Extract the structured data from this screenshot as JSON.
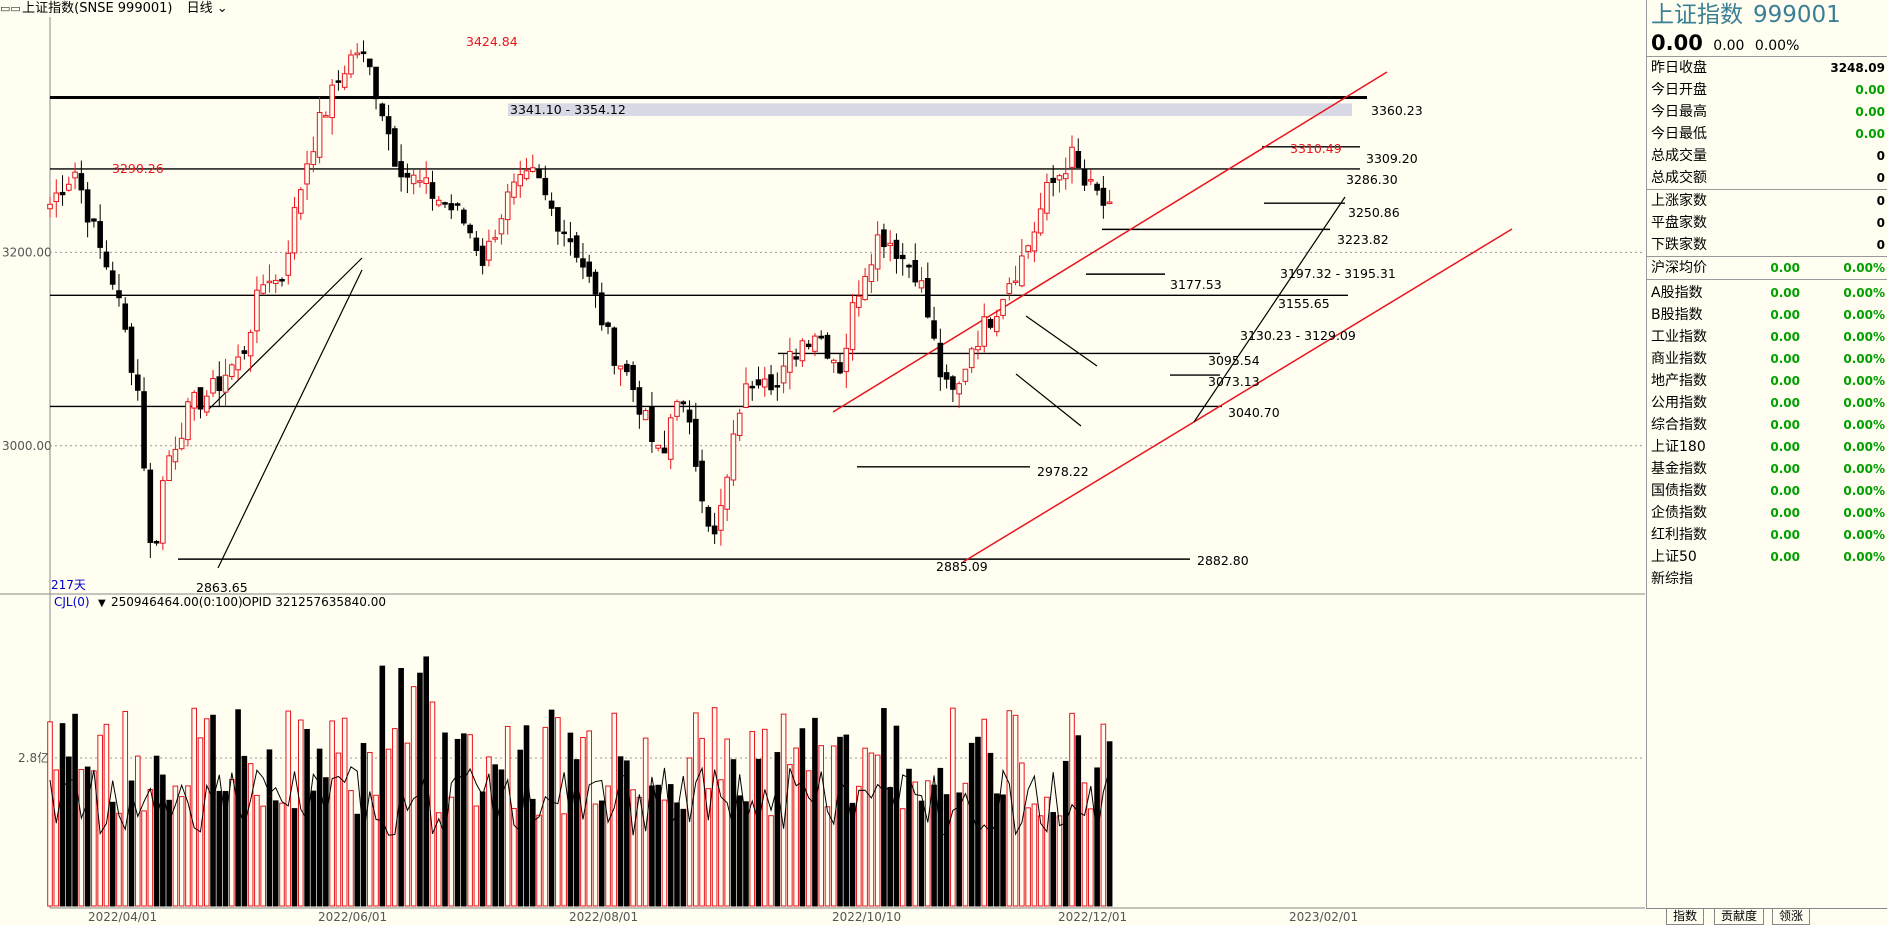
{
  "topbar": {
    "icon": "chart-mode-icon",
    "title": "上证指数(SNSE 999001)",
    "period": "日线",
    "period_icon": "chevron-down-icon"
  },
  "chart_data": {
    "type": "candlestick",
    "title": "",
    "ylim": [
      2855,
      3430
    ],
    "y_ticks": [
      {
        "label": "3200.00",
        "value": 3200
      },
      {
        "label": "3000.00",
        "value": 3000
      }
    ],
    "x_ticks": [
      "2022/04/01",
      "2022/06/01",
      "2022/08/01",
      "2022/10/10",
      "2022/12/01",
      "2023/02/01"
    ],
    "days_label": "217天",
    "price_annotations": [
      {
        "text": "3424.84",
        "day": 62,
        "value": 3424.84,
        "color": "red"
      },
      {
        "text": "3290.26",
        "day": 13,
        "value": 3290.26,
        "color": "red"
      },
      {
        "text": "3310.49",
        "day": 206,
        "value": 3310.49,
        "color": "red"
      },
      {
        "text": "2863.65",
        "day": 25,
        "value": 2863.65,
        "color": "black"
      },
      {
        "text": "2885.09",
        "day": 137,
        "value": 2885.09,
        "color": "black"
      },
      {
        "text": "3341.10 - 3354.12",
        "day": 69,
        "value": 3354.12,
        "color": "black"
      },
      {
        "text": "3360.23",
        "value": 3360.23
      },
      {
        "text": "3309.20",
        "value": 3309.2
      },
      {
        "text": "3286.30",
        "value": 3286.3
      },
      {
        "text": "3250.86",
        "value": 3250.86
      },
      {
        "text": "3223.82",
        "value": 3223.82
      },
      {
        "text": "3197.32 - 3195.31",
        "value": 3195.31
      },
      {
        "text": "3177.53",
        "value": 3177.53
      },
      {
        "text": "3155.65",
        "value": 3155.65
      },
      {
        "text": "3130.23 - 3129.09",
        "value": 3129.09
      },
      {
        "text": "3095.54",
        "value": 3095.54
      },
      {
        "text": "3073.13",
        "value": 3073.13
      },
      {
        "text": "3040.70",
        "value": 3040.7
      },
      {
        "text": "2978.22",
        "value": 2978.22
      },
      {
        "text": "2882.80",
        "value": 2882.8
      }
    ],
    "levels": [
      3360.23,
      3286.3,
      3155.65,
      3095.54,
      3040.7,
      2978.22,
      2882.8,
      3309.2,
      3250.86,
      3223.82,
      3177.53,
      3073.13
    ],
    "close_path": [
      3250,
      3270,
      3285,
      3240,
      3200,
      3170,
      3110,
      3050,
      2870,
      2980,
      3010,
      3040,
      3050,
      3060,
      3080,
      3090,
      3140,
      3180,
      3165,
      3230,
      3290,
      3330,
      3360,
      3390,
      3410,
      3390,
      3350,
      3300,
      3280,
      3270,
      3260,
      3250,
      3240,
      3220,
      3190,
      3230,
      3260,
      3270,
      3280,
      3250,
      3230,
      3210,
      3180,
      3140,
      3100,
      3080,
      3050,
      3010,
      2980,
      3060,
      3020,
      2960,
      2900,
      2960,
      3040,
      3070,
      3080,
      3060,
      3090,
      3110,
      3120,
      3100,
      3080,
      3150,
      3190,
      3220,
      3210,
      3190,
      3180,
      3120,
      3060,
      3050,
      3100,
      3120,
      3140,
      3170,
      3190,
      3220,
      3260,
      3280,
      3300,
      3270,
      3260,
      3240
    ]
  },
  "indicator": {
    "name": "CJL(0)",
    "icon": "dropdown-triangle-icon",
    "value": "250946464.00(0:100)",
    "opid": "OPID 321257635840.00",
    "ref_label": "2.8亿"
  },
  "quote": {
    "name": "上证指数",
    "code": "999001",
    "price": "0.00",
    "change": "0.00",
    "pct": "0.00%",
    "fields": [
      {
        "label": "昨日收盘",
        "value": "3248.09",
        "color": "#000000"
      },
      {
        "label": "今日开盘",
        "value": "0.00",
        "color": "#00a000"
      },
      {
        "label": "今日最高",
        "value": "0.00",
        "color": "#00a000"
      },
      {
        "label": "今日最低",
        "value": "0.00",
        "color": "#00a000"
      },
      {
        "label": "总成交量",
        "value": "0",
        "color": "#000000"
      },
      {
        "label": "总成交额",
        "value": "0",
        "color": "#000000"
      }
    ],
    "breadth": [
      {
        "label": "上涨家数",
        "value": "0"
      },
      {
        "label": "平盘家数",
        "value": "0"
      },
      {
        "label": "下跌家数",
        "value": "0"
      }
    ],
    "avg": {
      "label": "沪深均价",
      "v1": "0.00",
      "v2": "0.00%"
    },
    "indices": [
      {
        "label": "A股指数",
        "v1": "0.00",
        "v2": "0.00%"
      },
      {
        "label": "B股指数",
        "v1": "0.00",
        "v2": "0.00%"
      },
      {
        "label": "工业指数",
        "v1": "0.00",
        "v2": "0.00%"
      },
      {
        "label": "商业指数",
        "v1": "0.00",
        "v2": "0.00%"
      },
      {
        "label": "地产指数",
        "v1": "0.00",
        "v2": "0.00%"
      },
      {
        "label": "公用指数",
        "v1": "0.00",
        "v2": "0.00%"
      },
      {
        "label": "综合指数",
        "v1": "0.00",
        "v2": "0.00%"
      },
      {
        "label": "上证180",
        "v1": "0.00",
        "v2": "0.00%"
      },
      {
        "label": "基金指数",
        "v1": "0.00",
        "v2": "0.00%"
      },
      {
        "label": "国债指数",
        "v1": "0.00",
        "v2": "0.00%"
      },
      {
        "label": "企债指数",
        "v1": "0.00",
        "v2": "0.00%"
      },
      {
        "label": "红利指数",
        "v1": "0.00",
        "v2": "0.00%"
      },
      {
        "label": "上证50",
        "v1": "0.00",
        "v2": "0.00%"
      },
      {
        "label": "新综指",
        "v1": "",
        "v2": ""
      }
    ]
  },
  "tabs": [
    {
      "label": "指数"
    },
    {
      "label": "贡献度"
    },
    {
      "label": "领涨"
    }
  ],
  "colors": {
    "up": "#e8141e",
    "down": "#000000",
    "background": "#fffef0",
    "title": "#3a7f95",
    "value_green": "#00a000"
  }
}
